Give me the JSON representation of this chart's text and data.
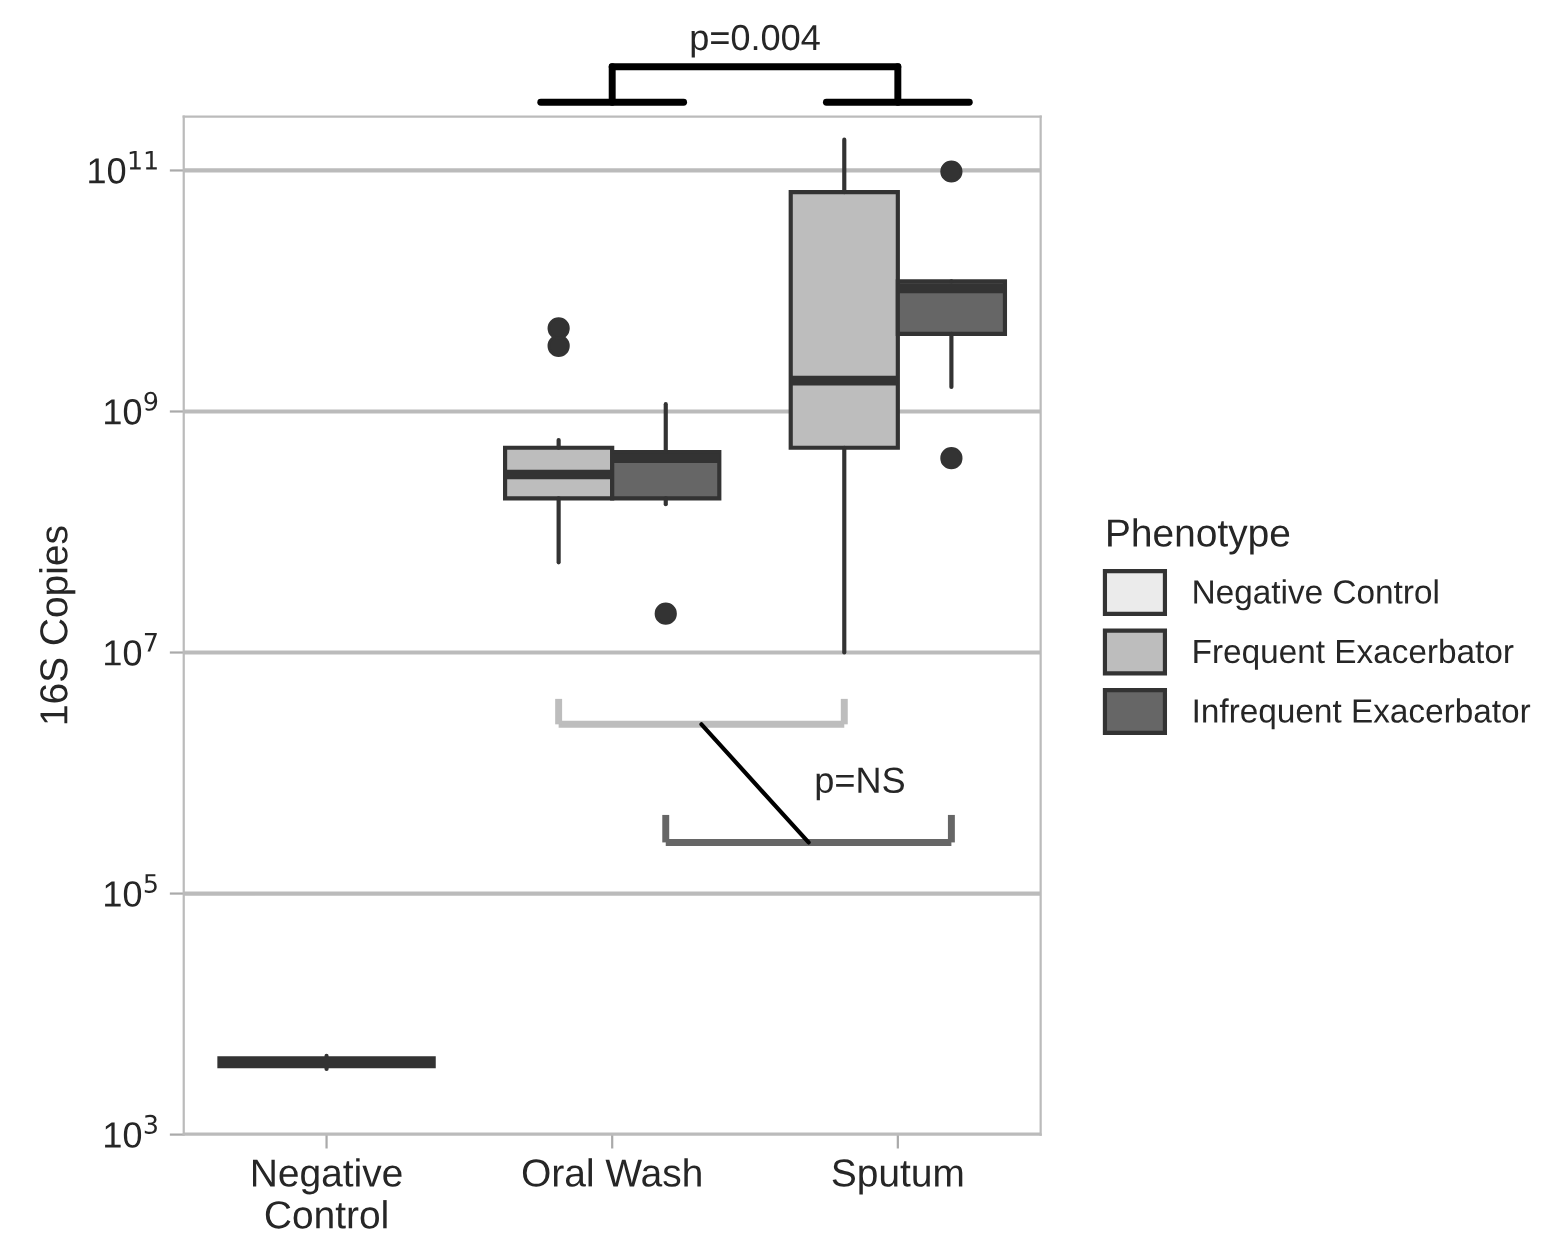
{
  "chart_data": {
    "type": "box",
    "categories": [
      "Negative\nControl",
      "Oral Wash",
      "Sputum"
    ],
    "ylabel": "16S Copies",
    "legend_title": "Phenotype",
    "legend": "right",
    "log": "y",
    "grid": "y",
    "ylim": [
      1000,
      280000000000
    ],
    "yticks": [
      {
        "value": 1000,
        "label": "10$^{3}$"
      },
      {
        "value": 100000,
        "label": "10$^{5}$"
      },
      {
        "value": 10000000,
        "label": "10$^{7}$"
      },
      {
        "value": 1000000000,
        "label": "10$^{9}$"
      },
      {
        "value": 100000000000,
        "label": "10$^{11}$"
      }
    ],
    "annotations": [
      "p=0.004",
      "p=NS"
    ],
    "series": [
      {
        "name": "Negative Control",
        "color": "#ebebeb",
        "boxes": [
          {
            "low": 3500,
            "q1": 3700,
            "median": 4000,
            "q3": 4300,
            "high": 4500
          },
          null,
          null
        ]
      },
      {
        "name": "Frequent Exacerbator",
        "color": "#bdbdbd",
        "boxes": [
          null,
          {
            "low": 56000000,
            "q1": 190000000,
            "median": 300000000,
            "q3": 500000000,
            "high": 580000000,
            "outliers": [
              3500000000,
              4900000000
            ]
          },
          {
            "low": 10000000,
            "q1": 500000000,
            "median": 1800000000,
            "q3": 66000000000,
            "high": 180000000000
          }
        ]
      },
      {
        "name": "Infrequent Exacerbator",
        "color": "#666666",
        "boxes": [
          null,
          {
            "low": 170000000,
            "q1": 190000000,
            "median": 410000000,
            "q3": 460000000,
            "high": 1150000000,
            "outliers": [
              21000000
            ]
          },
          {
            "low": 1600000000,
            "q1": 4400000000,
            "median": 10500000000,
            "q3": 12000000000,
            "high": 12000000000,
            "outliers": [
              410000000,
              98000000000
            ]
          }
        ]
      }
    ]
  }
}
